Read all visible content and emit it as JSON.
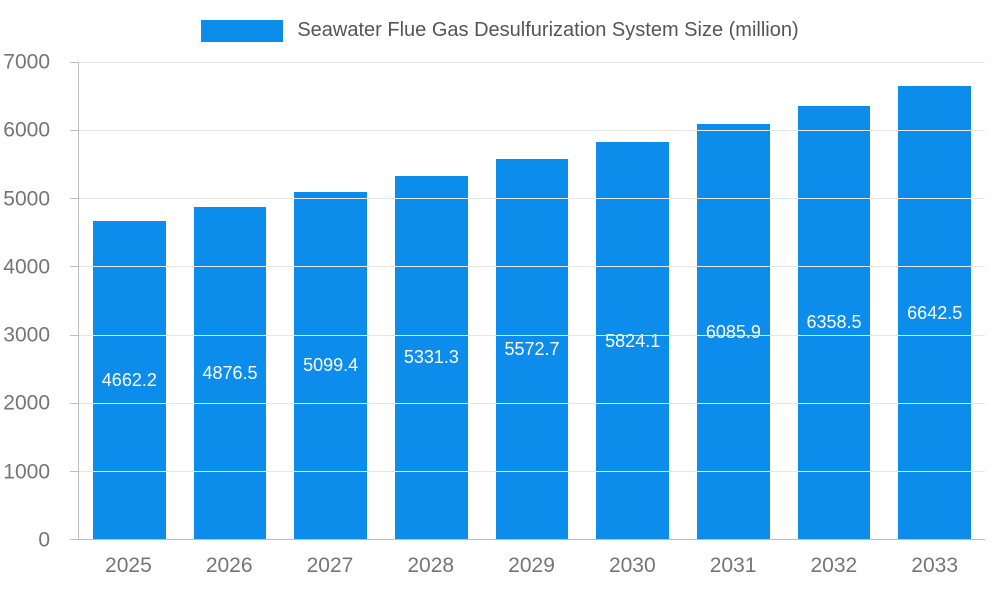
{
  "chart_data": {
    "type": "bar",
    "title": "Seawater Flue Gas Desulfurization System Size (million)",
    "categories": [
      "2025",
      "2026",
      "2027",
      "2028",
      "2029",
      "2030",
      "2031",
      "2032",
      "2033"
    ],
    "series": [
      {
        "name": "Seawater Flue Gas Desulfurization System Size (million)",
        "values": [
          4662.2,
          4876.5,
          5099.4,
          5331.3,
          5572.7,
          5824.1,
          6085.9,
          6358.5,
          6642.5
        ]
      }
    ],
    "value_labels": [
      "4662.2",
      "4876.5",
      "5099.4",
      "5331.3",
      "5572.7",
      "5824.1",
      "6085.9",
      "6358.5",
      "6642.5"
    ],
    "xlabel": "",
    "ylabel": "",
    "ylim": [
      0,
      7000
    ],
    "y_ticks": [
      0,
      1000,
      2000,
      3000,
      4000,
      5000,
      6000,
      7000
    ],
    "grid": true,
    "legend_position": "top",
    "bar_color": "#0d8deb",
    "value_label_color": "#ffffff",
    "axis_label_color": "#757575",
    "title_color": "#555555",
    "gridline_color": "#e6e6e6",
    "axis_line_color": "#bdbdbd"
  }
}
